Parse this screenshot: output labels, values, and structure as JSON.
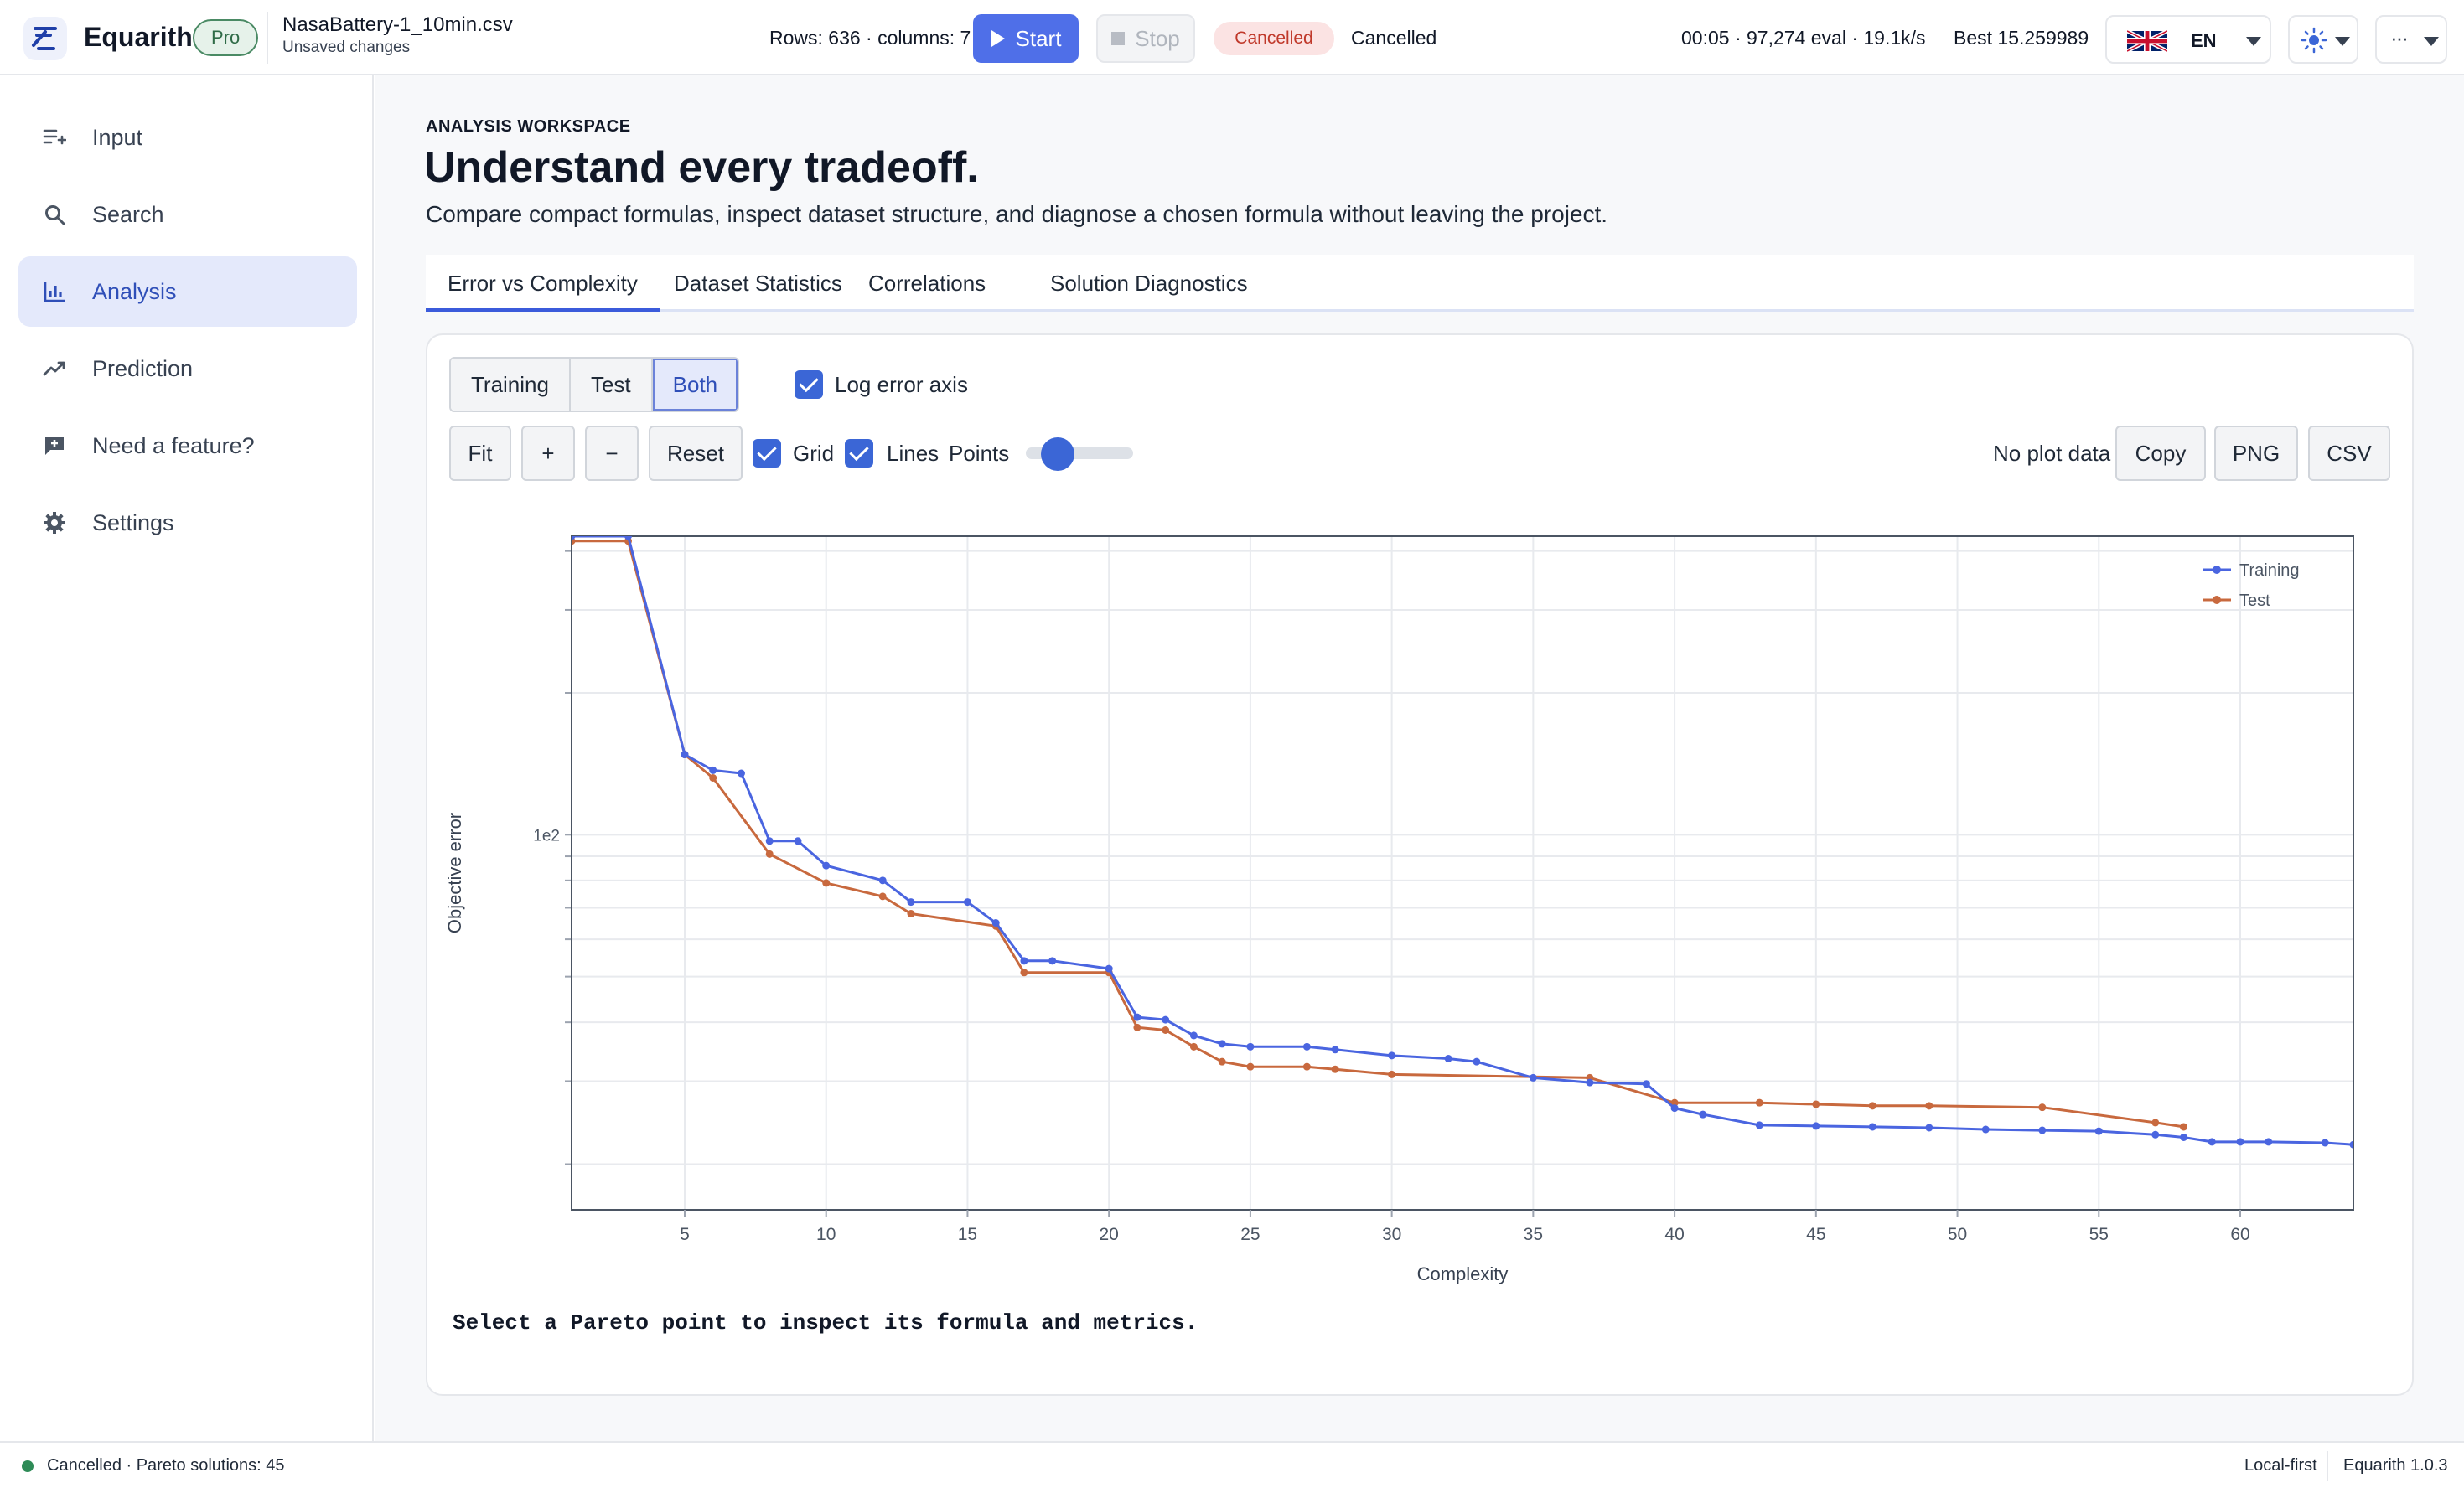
{
  "app": {
    "brand": "Equarith",
    "plan_badge": "Pro",
    "file_name": "NasaBattery-1_10min.csv",
    "file_status": "Unsaved changes",
    "rows_info": "Rows: 636 · columns: 7",
    "start_label": "Start",
    "stop_label": "Stop",
    "status_pill": "Cancelled",
    "status_text": "Cancelled",
    "timer_text": "00:05 · 97,274 eval · 19.1k/s",
    "best_text": "Best 15.259989",
    "language": "EN",
    "more_label": "···"
  },
  "sidebar": {
    "items": [
      {
        "label": "Input",
        "icon": "list-add-icon"
      },
      {
        "label": "Search",
        "icon": "search-icon"
      },
      {
        "label": "Analysis",
        "icon": "bar-chart-icon",
        "active": true
      },
      {
        "label": "Prediction",
        "icon": "trend-icon"
      },
      {
        "label": "Need a feature?",
        "icon": "feedback-icon"
      },
      {
        "label": "Settings",
        "icon": "gear-icon"
      }
    ]
  },
  "main": {
    "eyebrow": "ANALYSIS WORKSPACE",
    "title": "Understand every tradeoff.",
    "subtitle": "Compare compact formulas, inspect dataset structure, and diagnose a chosen formula without leaving the project.",
    "tabs": [
      {
        "label": "Error vs Complexity",
        "active": true
      },
      {
        "label": "Dataset Statistics"
      },
      {
        "label": "Correlations"
      },
      {
        "label": "Solution Diagnostics"
      }
    ],
    "dataset_toggle": {
      "training": "Training",
      "test": "Test",
      "both": "Both",
      "selected": "Both"
    },
    "log_axis_label": "Log error axis",
    "log_axis_checked": true,
    "toolbar": {
      "fit": "Fit",
      "zoom_in": "+",
      "zoom_out": "−",
      "reset": "Reset",
      "grid_label": "Grid",
      "grid_checked": true,
      "lines_label": "Lines",
      "lines_checked": true,
      "points_label": "Points",
      "points_level": 0.25,
      "no_data": "No plot data",
      "copy": "Copy",
      "png": "PNG",
      "csv": "CSV"
    },
    "footer_message": "Select a Pareto point to inspect its formula and metrics."
  },
  "chart_data": {
    "type": "line",
    "xlabel": "Complexity",
    "ylabel": "Objective error",
    "y_scale": "log",
    "xlim": [
      1,
      64
    ],
    "ylim": [
      16,
      430
    ],
    "x_ticks": [
      5,
      10,
      15,
      20,
      25,
      30,
      35,
      40,
      45,
      50,
      55,
      60
    ],
    "y_tick_label": "1e2",
    "grid": true,
    "legend_position": "top-right",
    "series": [
      {
        "name": "Training",
        "color": "#4a65e0",
        "x": [
          1,
          3,
          5,
          6,
          7,
          8,
          9,
          10,
          12,
          13,
          15,
          16,
          17,
          18,
          20,
          21,
          22,
          23,
          24,
          25,
          27,
          28,
          30,
          32,
          33,
          35,
          37,
          39,
          40,
          41,
          43,
          45,
          47,
          49,
          51,
          53,
          55,
          57,
          58,
          59,
          60,
          61,
          63,
          64
        ],
        "y": [
          430,
          430,
          148,
          137,
          135,
          97,
          97,
          86,
          80,
          72,
          72,
          65,
          54,
          54,
          52,
          41,
          40.5,
          37.5,
          36,
          35.5,
          35.5,
          35,
          34,
          33.5,
          33,
          30.5,
          29.8,
          29.6,
          26.3,
          25.5,
          24.2,
          24.1,
          24.0,
          23.9,
          23.7,
          23.6,
          23.5,
          23.1,
          22.8,
          22.3,
          22.3,
          22.3,
          22.2,
          22.0
        ]
      },
      {
        "name": "Test",
        "color": "#c8693e",
        "x": [
          1,
          3,
          5,
          6,
          8,
          10,
          12,
          13,
          16,
          17,
          20,
          21,
          22,
          23,
          24,
          25,
          27,
          28,
          30,
          37,
          40,
          43,
          45,
          47,
          49,
          53,
          57,
          58
        ],
        "y": [
          420,
          420,
          148,
          132,
          91,
          79,
          74,
          68,
          64,
          51,
          51,
          39,
          38.5,
          35.5,
          33,
          32.2,
          32.2,
          31.8,
          31,
          30.5,
          27,
          27,
          26.8,
          26.6,
          26.6,
          26.4,
          24.5,
          24.0
        ]
      }
    ]
  },
  "statusbar": {
    "left_text": "Cancelled · Pareto solutions: 45",
    "right_text_1": "Local-first",
    "right_text_2": "Equarith 1.0.3"
  },
  "colors": {
    "accent": "#4f6fe8",
    "active_nav_bg": "#e4e9fb",
    "status_cancelled": "#c0392b",
    "status_dot": "#2e8b57"
  }
}
